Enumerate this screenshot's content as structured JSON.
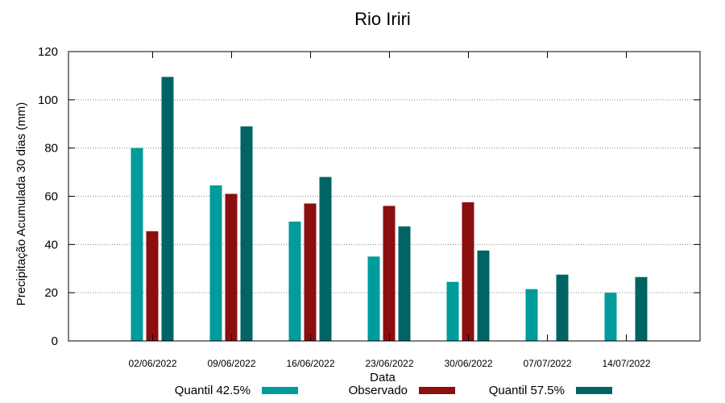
{
  "chart_data": {
    "type": "bar",
    "title": "Rio Iriri",
    "xlabel": "Data",
    "ylabel": "Precipitação Acumulada 30 dias (mm)",
    "ylim": [
      0,
      120
    ],
    "yticks": [
      0,
      20,
      40,
      60,
      80,
      100,
      120
    ],
    "grid": true,
    "legend_position": "bottom",
    "categories": [
      "02/06/2022",
      "09/06/2022",
      "16/06/2022",
      "23/06/2022",
      "30/06/2022",
      "07/07/2022",
      "14/07/2022"
    ],
    "series": [
      {
        "name": "Quantil 42.5%",
        "color": "#009b9b",
        "values": [
          80,
          64.5,
          49.5,
          35,
          24.5,
          21.5,
          20
        ]
      },
      {
        "name": "Observado",
        "color": "#8b0f0f",
        "values": [
          45.5,
          61,
          57,
          56,
          57.5,
          null,
          null
        ]
      },
      {
        "name": "Quantil 57.5%",
        "color": "#006464",
        "values": [
          109.5,
          89,
          68,
          47.5,
          37.5,
          27.5,
          26.5
        ]
      }
    ]
  }
}
